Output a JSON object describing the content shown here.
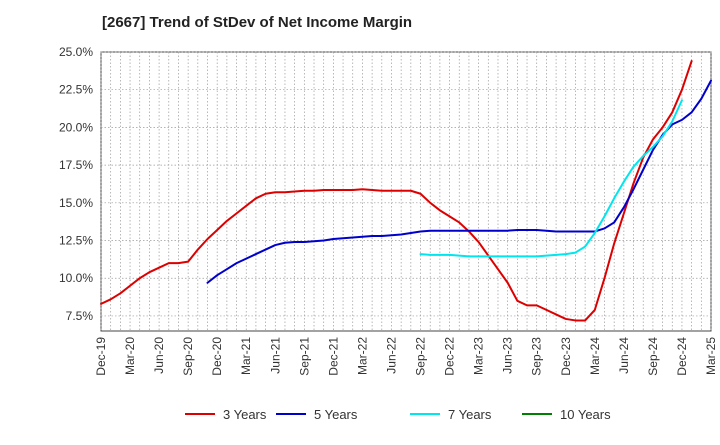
{
  "chart_data": {
    "type": "line",
    "title": "[2667]  Trend of StDev of Net Income Margin",
    "xlabel": "",
    "ylabel": "",
    "x_tick_labels": [
      "Dec-19",
      "Mar-20",
      "Jun-20",
      "Sep-20",
      "Dec-20",
      "Mar-21",
      "Jun-21",
      "Sep-21",
      "Dec-21",
      "Mar-22",
      "Jun-22",
      "Sep-22",
      "Dec-22",
      "Mar-23",
      "Jun-23",
      "Sep-23",
      "Dec-23",
      "Mar-24",
      "Jun-24",
      "Sep-24",
      "Dec-24",
      "Mar-25"
    ],
    "y_tick_labels": [
      "7.5%",
      "10.0%",
      "12.5%",
      "15.0%",
      "17.5%",
      "20.0%",
      "22.5%",
      "25.0%"
    ],
    "y_ticks": [
      7.5,
      10.0,
      12.5,
      15.0,
      17.5,
      20.0,
      22.5,
      25.0
    ],
    "ylim": [
      6.5,
      25.0
    ],
    "x_months_range": [
      "Dec-19",
      "Mar-25"
    ],
    "grid": true,
    "grid_style": "dotted",
    "legend_position": "bottom",
    "series": [
      {
        "name": "3 Years",
        "color": "#dd0000",
        "points": [
          [
            "Dec-19",
            8.3
          ],
          [
            "Jan-20",
            8.6
          ],
          [
            "Feb-20",
            9.0
          ],
          [
            "Mar-20",
            9.5
          ],
          [
            "Apr-20",
            10.0
          ],
          [
            "May-20",
            10.4
          ],
          [
            "Jun-20",
            10.7
          ],
          [
            "Jul-20",
            11.0
          ],
          [
            "Aug-20",
            11.0
          ],
          [
            "Sep-20",
            11.1
          ],
          [
            "Oct-20",
            11.9
          ],
          [
            "Nov-20",
            12.6
          ],
          [
            "Dec-20",
            13.2
          ],
          [
            "Jan-21",
            13.8
          ],
          [
            "Feb-21",
            14.3
          ],
          [
            "Mar-21",
            14.8
          ],
          [
            "Apr-21",
            15.3
          ],
          [
            "May-21",
            15.6
          ],
          [
            "Jun-21",
            15.7
          ],
          [
            "Jul-21",
            15.7
          ],
          [
            "Aug-21",
            15.75
          ],
          [
            "Sep-21",
            15.8
          ],
          [
            "Oct-21",
            15.8
          ],
          [
            "Nov-21",
            15.85
          ],
          [
            "Dec-21",
            15.85
          ],
          [
            "Jan-22",
            15.85
          ],
          [
            "Feb-22",
            15.85
          ],
          [
            "Mar-22",
            15.9
          ],
          [
            "Apr-22",
            15.85
          ],
          [
            "May-22",
            15.8
          ],
          [
            "Jun-22",
            15.8
          ],
          [
            "Jul-22",
            15.8
          ],
          [
            "Aug-22",
            15.8
          ],
          [
            "Sep-22",
            15.6
          ],
          [
            "Oct-22",
            15.0
          ],
          [
            "Nov-22",
            14.5
          ],
          [
            "Dec-22",
            14.1
          ],
          [
            "Jan-23",
            13.7
          ],
          [
            "Feb-23",
            13.1
          ],
          [
            "Mar-23",
            12.4
          ],
          [
            "Apr-23",
            11.5
          ],
          [
            "May-23",
            10.6
          ],
          [
            "Jun-23",
            9.7
          ],
          [
            "Jul-23",
            8.5
          ],
          [
            "Aug-23",
            8.2
          ],
          [
            "Sep-23",
            8.2
          ],
          [
            "Oct-23",
            7.9
          ],
          [
            "Nov-23",
            7.6
          ],
          [
            "Dec-23",
            7.3
          ],
          [
            "Jan-24",
            7.2
          ],
          [
            "Feb-24",
            7.2
          ],
          [
            "Mar-24",
            7.9
          ],
          [
            "Apr-24",
            10.0
          ],
          [
            "May-24",
            12.3
          ],
          [
            "Jun-24",
            14.3
          ],
          [
            "Jul-24",
            16.3
          ],
          [
            "Aug-24",
            18.0
          ],
          [
            "Sep-24",
            19.2
          ],
          [
            "Oct-24",
            20.0
          ],
          [
            "Nov-24",
            21.0
          ],
          [
            "Dec-24",
            22.5
          ],
          [
            "Jan-25",
            24.4
          ]
        ]
      },
      {
        "name": "5 Years",
        "color": "#0000cc",
        "points": [
          [
            "Nov-20",
            9.7
          ],
          [
            "Dec-20",
            10.2
          ],
          [
            "Jan-21",
            10.6
          ],
          [
            "Feb-21",
            11.0
          ],
          [
            "Mar-21",
            11.3
          ],
          [
            "Apr-21",
            11.6
          ],
          [
            "May-21",
            11.9
          ],
          [
            "Jun-21",
            12.2
          ],
          [
            "Jul-21",
            12.35
          ],
          [
            "Aug-21",
            12.4
          ],
          [
            "Sep-21",
            12.4
          ],
          [
            "Oct-21",
            12.45
          ],
          [
            "Nov-21",
            12.5
          ],
          [
            "Dec-21",
            12.6
          ],
          [
            "Jan-22",
            12.65
          ],
          [
            "Feb-22",
            12.7
          ],
          [
            "Mar-22",
            12.75
          ],
          [
            "Apr-22",
            12.8
          ],
          [
            "May-22",
            12.8
          ],
          [
            "Jun-22",
            12.85
          ],
          [
            "Jul-22",
            12.9
          ],
          [
            "Aug-22",
            13.0
          ],
          [
            "Sep-22",
            13.1
          ],
          [
            "Oct-22",
            13.15
          ],
          [
            "Nov-22",
            13.15
          ],
          [
            "Dec-22",
            13.15
          ],
          [
            "Jan-23",
            13.15
          ],
          [
            "Feb-23",
            13.15
          ],
          [
            "Mar-23",
            13.15
          ],
          [
            "Apr-23",
            13.15
          ],
          [
            "May-23",
            13.15
          ],
          [
            "Jun-23",
            13.15
          ],
          [
            "Jul-23",
            13.2
          ],
          [
            "Aug-23",
            13.2
          ],
          [
            "Sep-23",
            13.2
          ],
          [
            "Oct-23",
            13.15
          ],
          [
            "Nov-23",
            13.1
          ],
          [
            "Dec-23",
            13.1
          ],
          [
            "Jan-24",
            13.1
          ],
          [
            "Feb-24",
            13.1
          ],
          [
            "Mar-24",
            13.1
          ],
          [
            "Apr-24",
            13.3
          ],
          [
            "May-24",
            13.7
          ],
          [
            "Jun-24",
            14.7
          ],
          [
            "Jul-24",
            15.9
          ],
          [
            "Aug-24",
            17.2
          ],
          [
            "Sep-24",
            18.5
          ],
          [
            "Oct-24",
            19.5
          ],
          [
            "Nov-24",
            20.2
          ],
          [
            "Dec-24",
            20.5
          ],
          [
            "Jan-25",
            21.0
          ],
          [
            "Feb-25",
            21.9
          ],
          [
            "Mar-25",
            23.1
          ]
        ]
      },
      {
        "name": "7 Years",
        "color": "#00e5ee",
        "points": [
          [
            "Sep-22",
            11.6
          ],
          [
            "Oct-22",
            11.55
          ],
          [
            "Nov-22",
            11.55
          ],
          [
            "Dec-22",
            11.55
          ],
          [
            "Jan-23",
            11.5
          ],
          [
            "Feb-23",
            11.45
          ],
          [
            "Mar-23",
            11.45
          ],
          [
            "Apr-23",
            11.45
          ],
          [
            "May-23",
            11.45
          ],
          [
            "Jun-23",
            11.45
          ],
          [
            "Jul-23",
            11.45
          ],
          [
            "Aug-23",
            11.45
          ],
          [
            "Sep-23",
            11.45
          ],
          [
            "Oct-23",
            11.5
          ],
          [
            "Nov-23",
            11.55
          ],
          [
            "Dec-23",
            11.6
          ],
          [
            "Jan-24",
            11.7
          ],
          [
            "Feb-24",
            12.1
          ],
          [
            "Mar-24",
            13.0
          ],
          [
            "Apr-24",
            14.1
          ],
          [
            "May-24",
            15.3
          ],
          [
            "Jun-24",
            16.4
          ],
          [
            "Jul-24",
            17.4
          ],
          [
            "Aug-24",
            18.1
          ],
          [
            "Sep-24",
            18.7
          ],
          [
            "Oct-24",
            19.4
          ],
          [
            "Nov-24",
            20.4
          ],
          [
            "Dec-24",
            21.8
          ]
        ]
      },
      {
        "name": "10 Years",
        "color": "#008000",
        "points": []
      }
    ]
  }
}
